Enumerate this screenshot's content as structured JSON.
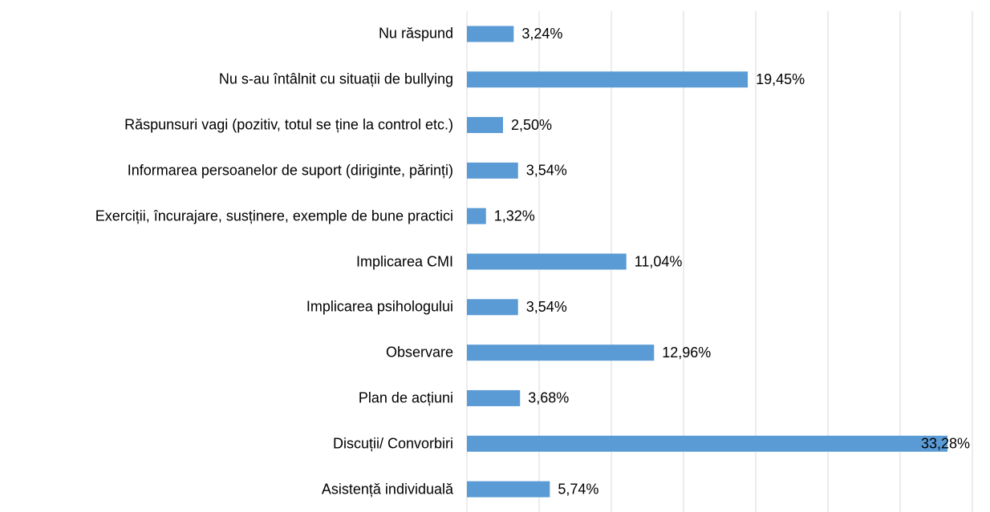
{
  "chart_data": {
    "type": "bar",
    "orientation": "horizontal",
    "categories": [
      "Nu răspund",
      "Nu s-au întâlnit cu situații de bullying",
      "Răspunsuri vagi (pozitiv, totul se ține la control etc.)",
      "Informarea persoanelor de suport (diriginte, părinți)",
      "Exerciții, încurajare, susținere, exemple de bune practici",
      "Implicarea CMI",
      "Implicarea psihologului",
      "Observare",
      "Plan de acțiuni",
      "Discuții/ Convorbiri",
      "Asistență individuală"
    ],
    "values": [
      3.24,
      19.45,
      2.5,
      3.54,
      1.32,
      11.04,
      3.54,
      12.96,
      3.68,
      33.28,
      5.74
    ],
    "value_labels": [
      "3,24%",
      "19,45%",
      "2,50%",
      "3,54%",
      "1,32%",
      "11,04%",
      "3,54%",
      "12,96%",
      "3,68%",
      "33,28%",
      "5,74%"
    ],
    "color": "#5b9bd5",
    "xlim": [
      0,
      35
    ],
    "xticks": [
      0,
      5,
      10,
      15,
      20,
      25,
      30,
      35
    ],
    "grid": true
  }
}
